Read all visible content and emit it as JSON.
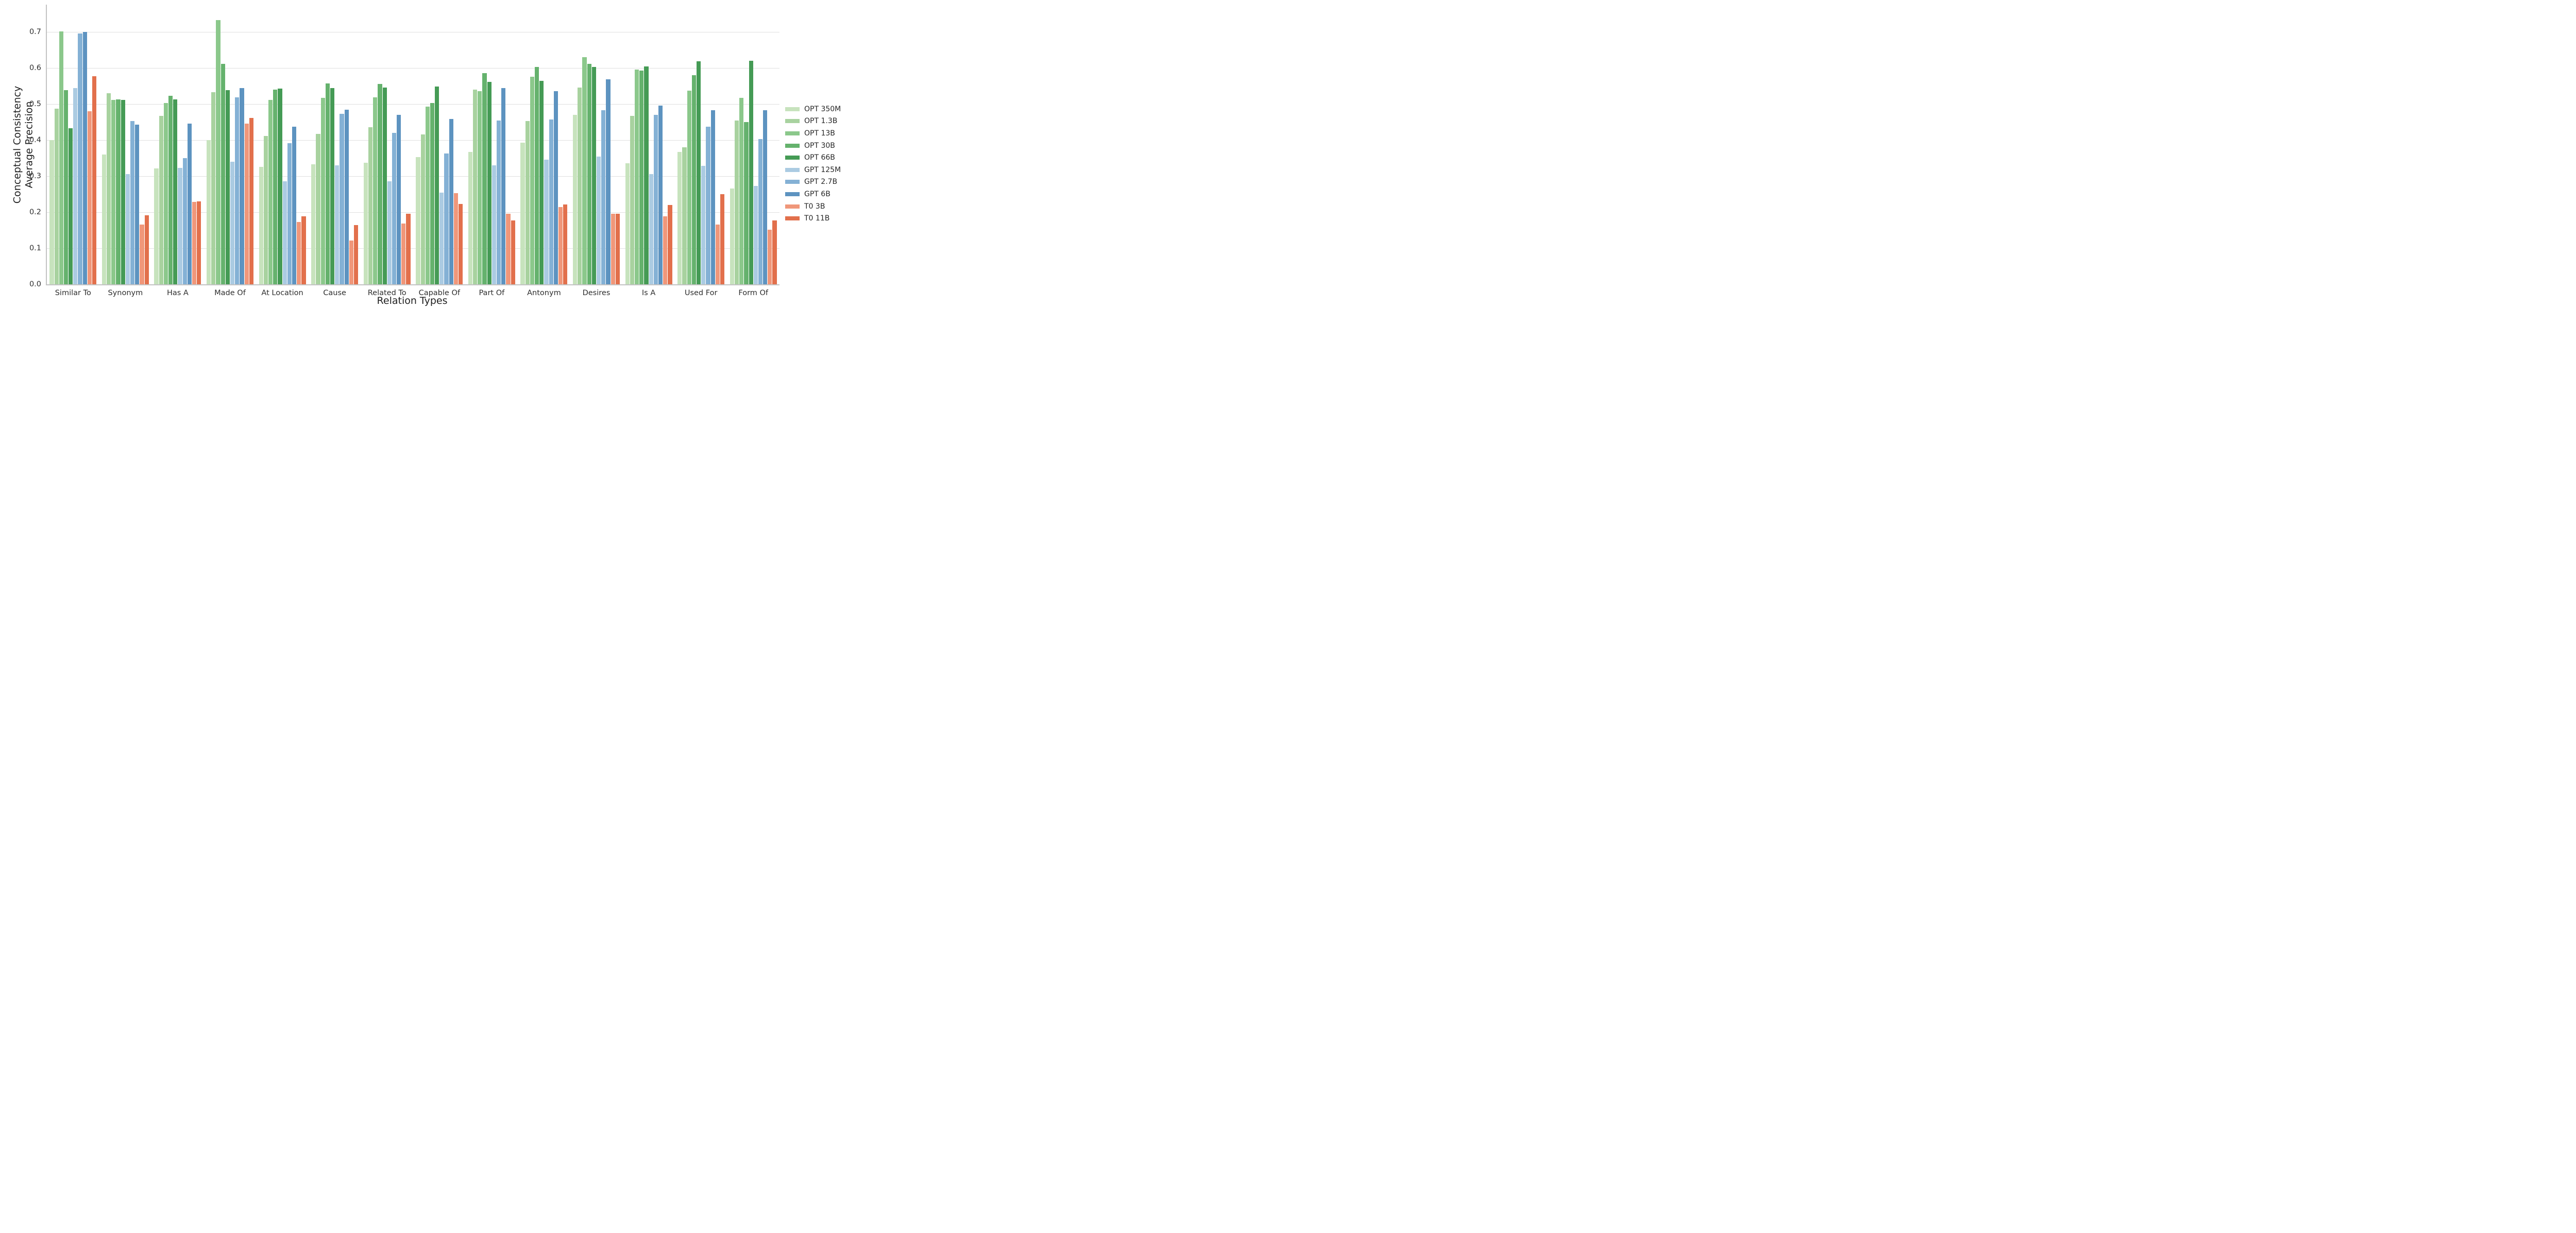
{
  "chart_data": {
    "type": "bar",
    "title": "",
    "xlabel": "Relation Types",
    "ylabel_lines": [
      "Conceptual Consistency",
      "Average Precision"
    ],
    "ylim": [
      0,
      0.775
    ],
    "yticks": [
      0.0,
      0.1,
      0.2,
      0.3,
      0.4,
      0.5,
      0.6,
      0.7
    ],
    "grid": "horizontal",
    "legend_position": "right",
    "categories": [
      "Similar To",
      "Synonym",
      "Has A",
      "Made Of",
      "At Location",
      "Cause",
      "Related To",
      "Capable Of",
      "Part Of",
      "Antonym",
      "Desires",
      "Is A",
      "Used For",
      "Form Of"
    ],
    "series": [
      {
        "name": "OPT 350M",
        "color": "#c7e3bd",
        "values": [
          0.4,
          0.359,
          0.321,
          0.399,
          0.326,
          0.332,
          0.337,
          0.352,
          0.367,
          0.392,
          0.47,
          0.335,
          0.367,
          0.266
        ]
      },
      {
        "name": "OPT 1.3B",
        "color": "#a8d29f",
        "values": [
          0.487,
          0.53,
          0.467,
          0.533,
          0.411,
          0.417,
          0.436,
          0.415,
          0.539,
          0.453,
          0.545,
          0.467,
          0.38,
          0.454
        ]
      },
      {
        "name": "OPT 13B",
        "color": "#8bc88b",
        "values": [
          0.701,
          0.511,
          0.502,
          0.732,
          0.511,
          0.517,
          0.518,
          0.492,
          0.535,
          0.575,
          0.629,
          0.595,
          0.536,
          0.517
        ]
      },
      {
        "name": "OPT 30B",
        "color": "#65b26d",
        "values": [
          0.538,
          0.512,
          0.523,
          0.611,
          0.54,
          0.557,
          0.555,
          0.502,
          0.585,
          0.603,
          0.611,
          0.592,
          0.58,
          0.449
        ]
      },
      {
        "name": "OPT 66B",
        "color": "#459b55",
        "values": [
          0.432,
          0.511,
          0.513,
          0.538,
          0.542,
          0.544,
          0.545,
          0.548,
          0.561,
          0.564,
          0.603,
          0.604,
          0.618,
          0.62
        ]
      },
      {
        "name": "GPT 125M",
        "color": "#abcbe2",
        "values": [
          0.544,
          0.306,
          0.323,
          0.339,
          0.285,
          0.33,
          0.286,
          0.254,
          0.33,
          0.345,
          0.354,
          0.306,
          0.328,
          0.272
        ]
      },
      {
        "name": "GPT 2.7B",
        "color": "#84b1d5",
        "values": [
          0.695,
          0.453,
          0.349,
          0.518,
          0.391,
          0.473,
          0.419,
          0.363,
          0.454,
          0.457,
          0.483,
          0.469,
          0.437,
          0.402
        ]
      },
      {
        "name": "GPT 6B",
        "color": "#5d93c0",
        "values": [
          0.699,
          0.443,
          0.445,
          0.544,
          0.437,
          0.484,
          0.47,
          0.458,
          0.544,
          0.535,
          0.568,
          0.495,
          0.483,
          0.482
        ]
      },
      {
        "name": "T0 3B",
        "color": "#f0977a",
        "values": [
          0.479,
          0.166,
          0.229,
          0.446,
          0.173,
          0.122,
          0.169,
          0.253,
          0.196,
          0.214,
          0.195,
          0.188,
          0.165,
          0.151
        ]
      },
      {
        "name": "T0 11B",
        "color": "#e2704c",
        "values": [
          0.577,
          0.191,
          0.23,
          0.461,
          0.189,
          0.164,
          0.195,
          0.222,
          0.177,
          0.221,
          0.196,
          0.22,
          0.25,
          0.177
        ]
      }
    ]
  }
}
